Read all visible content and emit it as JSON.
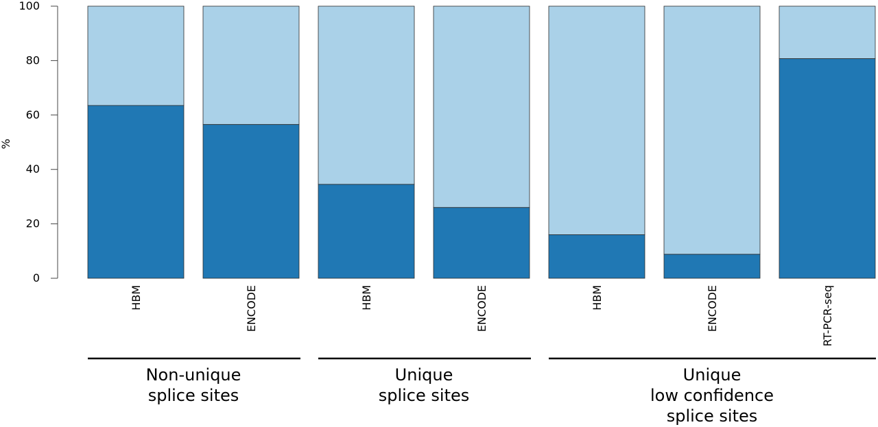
{
  "chart_data": {
    "type": "bar",
    "stacked": true,
    "ylabel": "%",
    "ylim": [
      0,
      100
    ],
    "yticks": [
      0,
      20,
      40,
      60,
      80,
      100
    ],
    "categories": [
      "HBM",
      "ENCODE",
      "HBM",
      "ENCODE",
      "HBM",
      "ENCODE",
      "RT-PCR-seq"
    ],
    "series": [
      {
        "values": [
          63.5,
          56.5,
          34.5,
          26,
          16,
          8.8,
          80.7
        ]
      },
      {
        "values": [
          36.5,
          43.5,
          65.5,
          74,
          84,
          91.2,
          19.3
        ]
      }
    ],
    "groups": [
      {
        "lines": [
          "Non-unique",
          "splice sites"
        ],
        "category_indices": [
          0,
          1
        ]
      },
      {
        "lines": [
          "Unique",
          "splice sites"
        ],
        "category_indices": [
          2,
          3
        ]
      },
      {
        "lines": [
          "Unique",
          "low confidence",
          "splice sites"
        ],
        "category_indices": [
          4,
          5,
          6
        ]
      }
    ],
    "colors": {
      "dark": "#2078b4",
      "light": "#aad1e8",
      "stroke": "#2b2b2b"
    },
    "grid": false,
    "legend": "none"
  }
}
